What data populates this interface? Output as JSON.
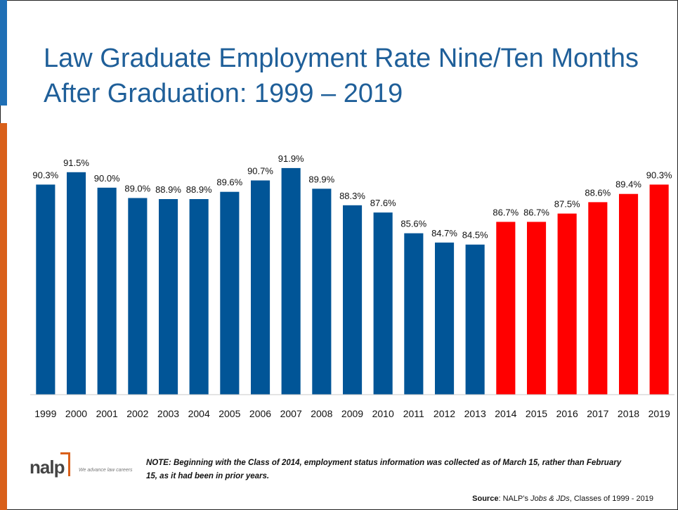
{
  "slide": {
    "title": "Law Graduate Employment Rate Nine/Ten Months After Graduation: 1999 – 2019",
    "logo": {
      "wordmark": "nalp",
      "tagline": "We advance law careers"
    },
    "note": "NOTE: Beginning with the Class of 2014, employment status information was collected as of March 15, rather than February 15, as it had been in prior years.",
    "source": {
      "label": "Source",
      "text_before": ": NALP’s ",
      "italic": "Jobs & JDs",
      "text_after": ", Classes of 1999 - 2019"
    },
    "colors": {
      "title": "#1f5f99",
      "accent_blue": "#1f6fb5",
      "accent_orange": "#d9601a"
    }
  },
  "chart_data": {
    "type": "bar",
    "categories": [
      "1999",
      "2000",
      "2001",
      "2002",
      "2003",
      "2004",
      "2005",
      "2006",
      "2007",
      "2008",
      "2009",
      "2010",
      "2011",
      "2012",
      "2013",
      "2014",
      "2015",
      "2016",
      "2017",
      "2018",
      "2019"
    ],
    "values": [
      90.3,
      91.5,
      90.0,
      89.0,
      88.9,
      88.9,
      89.6,
      90.7,
      91.9,
      89.9,
      88.3,
      87.6,
      85.6,
      84.7,
      84.5,
      86.7,
      86.7,
      87.5,
      88.6,
      89.4,
      90.3
    ],
    "data_labels": [
      "90.3%",
      "91.5%",
      "90.0%",
      "89.0%",
      "88.9%",
      "88.9%",
      "89.6%",
      "90.7%",
      "91.9%",
      "89.9%",
      "88.3%",
      "87.6%",
      "85.6%",
      "84.7%",
      "84.5%",
      "86.7%",
      "86.7%",
      "87.5%",
      "88.6%",
      "89.4%",
      "90.3%"
    ],
    "bar_colors": [
      "#015597",
      "#015597",
      "#015597",
      "#015597",
      "#015597",
      "#015597",
      "#015597",
      "#015597",
      "#015597",
      "#015597",
      "#015597",
      "#015597",
      "#015597",
      "#015597",
      "#015597",
      "#ff0000",
      "#ff0000",
      "#ff0000",
      "#ff0000",
      "#ff0000",
      "#ff0000"
    ],
    "ylim": [
      70,
      94
    ],
    "grid": false,
    "legend": "none"
  }
}
